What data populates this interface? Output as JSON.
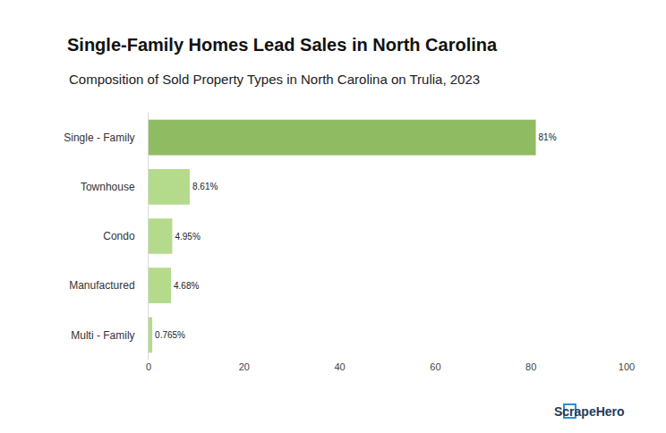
{
  "chart_data": {
    "type": "bar",
    "orientation": "horizontal",
    "title": "Single-Family Homes Lead Sales in North Carolina",
    "subtitle": "Composition of Sold Property Types in North Carolina on Trulia, 2023",
    "categories": [
      "Single - Family",
      "Townhouse",
      "Condo",
      "Manufactured",
      "Multi - Family"
    ],
    "values": [
      81,
      8.61,
      4.95,
      4.68,
      0.765
    ],
    "value_labels": [
      "81%",
      "8.61%",
      "4.95%",
      "4.68%",
      "0.765%"
    ],
    "colors": [
      "#8fbb63",
      "#b4db8b",
      "#b4db8b",
      "#b4db8b",
      "#b4db8b"
    ],
    "data_labels": true,
    "xlim": [
      0,
      100
    ],
    "xticks": [
      0,
      20,
      40,
      60,
      80,
      100
    ],
    "grid": false,
    "logo": "ScrapeHero"
  }
}
